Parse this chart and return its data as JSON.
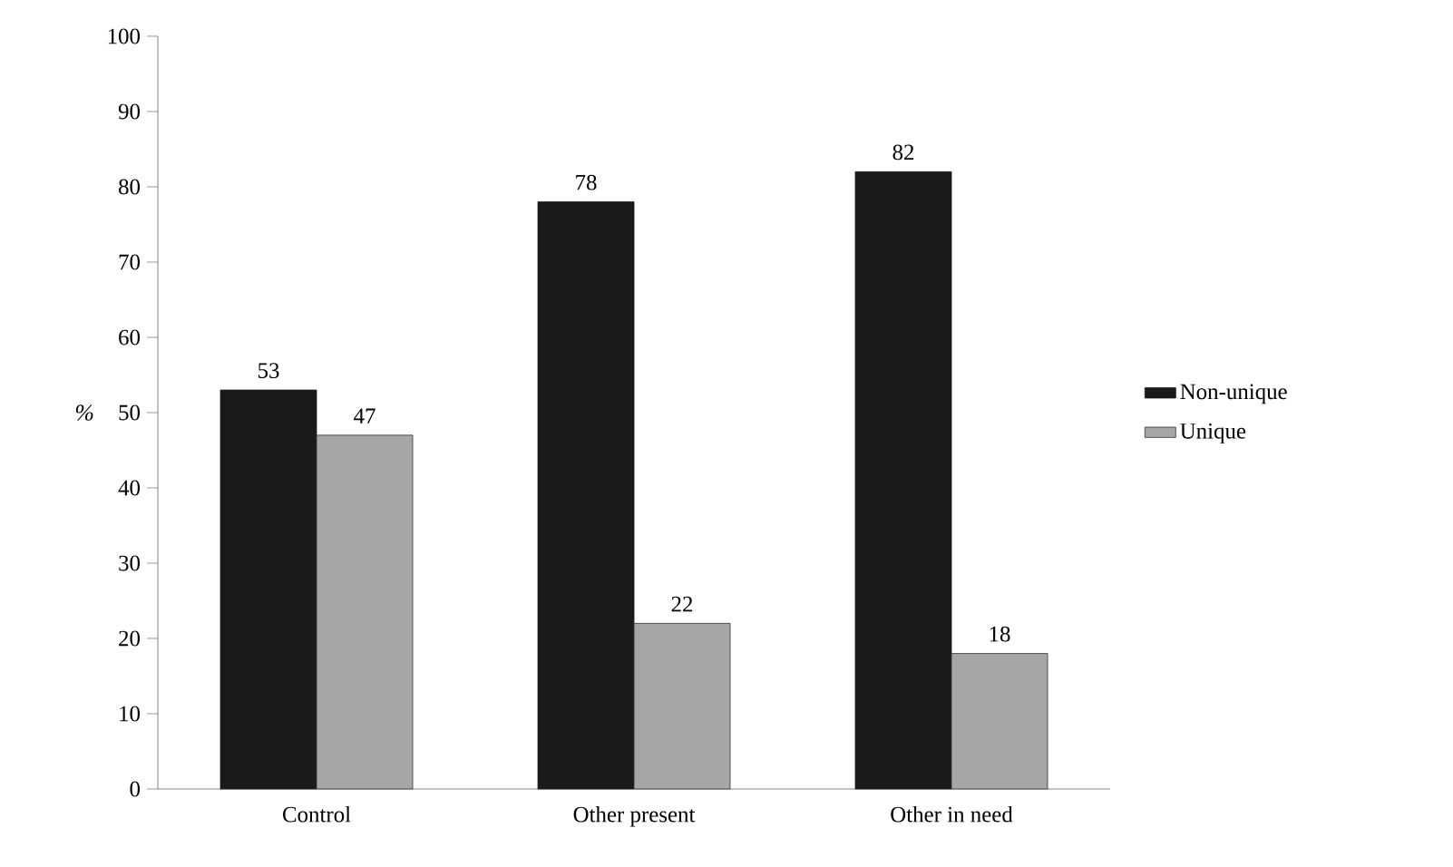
{
  "chart_data": {
    "type": "bar",
    "ylabel": "%",
    "categories": [
      "Control",
      "Other present",
      "Other in need"
    ],
    "series": [
      {
        "name": "Non-unique",
        "color": "#1a1a1a",
        "values": [
          53,
          78,
          82
        ]
      },
      {
        "name": "Unique",
        "color": "#a6a6a6",
        "values": [
          47,
          22,
          18
        ]
      }
    ],
    "ylim": [
      0,
      100
    ],
    "yticks": [
      0,
      10,
      20,
      30,
      40,
      50,
      60,
      70,
      80,
      90,
      100
    ],
    "grid": false,
    "legend": "right",
    "data_labels": true
  }
}
